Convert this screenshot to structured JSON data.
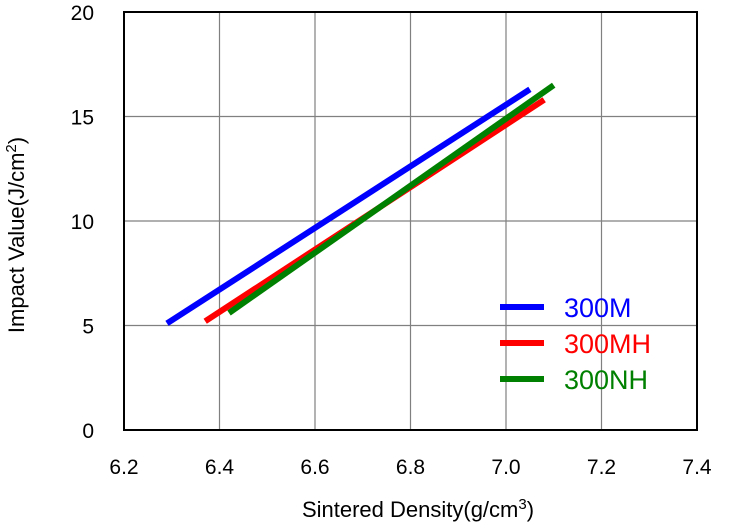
{
  "chart_data": {
    "type": "line",
    "title": "",
    "xlabel": "Sintered Density(g/cm",
    "xlabel_sup": "3",
    "xlabel_end": ")",
    "ylabel": "Impact Value(J/cm",
    "ylabel_sup": "2",
    "ylabel_end": ")",
    "xlim": [
      6.2,
      7.4
    ],
    "ylim": [
      0,
      20
    ],
    "x_ticks": [
      "6.2",
      "6.4",
      "6.6",
      "6.8",
      "7.0",
      "7.2",
      "7.4"
    ],
    "y_ticks": [
      "0",
      "5",
      "10",
      "15",
      "20"
    ],
    "grid": true,
    "legend_position": "bottom-right",
    "series": [
      {
        "name": "300M",
        "color": "#0000ff",
        "x": [
          6.29,
          7.05
        ],
        "y": [
          5.1,
          16.3
        ]
      },
      {
        "name": "300MH",
        "color": "#ff0000",
        "x": [
          6.37,
          7.08
        ],
        "y": [
          5.2,
          15.8
        ]
      },
      {
        "name": "300NH",
        "color": "#008000",
        "x": [
          6.42,
          7.1
        ],
        "y": [
          5.6,
          16.5
        ]
      }
    ]
  }
}
